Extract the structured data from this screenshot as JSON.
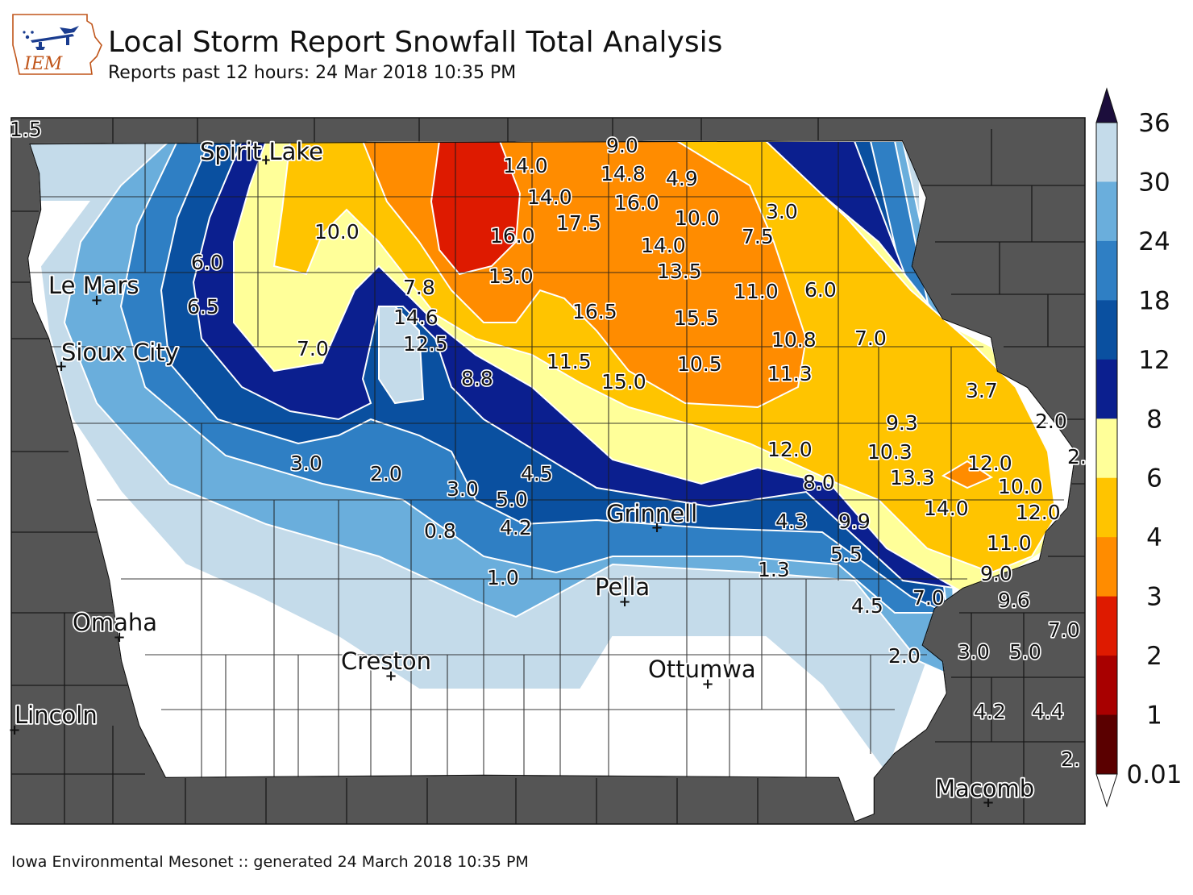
{
  "header": {
    "logo_text": "IEM",
    "title": "Local Storm Report Snowfall Total Analysis",
    "subtitle": "Reports past 12 hours: 24 Mar 2018 10:35 PM"
  },
  "footer": {
    "text": "Iowa Environmental Mesonet :: generated 24 March 2018 10:35 PM"
  },
  "colorbar": {
    "ticks": [
      "36",
      "30",
      "24",
      "18",
      "12",
      "8",
      "6",
      "4",
      "3",
      "2",
      "1",
      "0.01"
    ],
    "colors": [
      "#5a0000",
      "#a80000",
      "#de1a00",
      "#ff8c00",
      "#ffc400",
      "#ffff99",
      "#0b1f8f",
      "#0a50a0",
      "#2f7fc4",
      "#6aaedc",
      "#c4dbea"
    ],
    "top_color": "#1c0e3c",
    "bottom_color": "#ffffff"
  },
  "cities": [
    {
      "name": "Spirit Lake"
    },
    {
      "name": "Le Mars"
    },
    {
      "name": "Sioux City"
    },
    {
      "name": "Grinnell"
    },
    {
      "name": "Pella"
    },
    {
      "name": "Omaha"
    },
    {
      "name": "Creston"
    },
    {
      "name": "Ottumwa"
    },
    {
      "name": "Lincoln"
    },
    {
      "name": "Macomb"
    }
  ],
  "reports": [
    "1.5",
    "9.0",
    "14.0",
    "14.8",
    "4.9",
    "14.0",
    "16.0",
    "17.5",
    "10.0",
    "3.0",
    "16.0",
    "7.5",
    "14.0",
    "10.0",
    "13.0",
    "13.5",
    "6.0",
    "11.0",
    "6.0",
    "7.8",
    "6.5",
    "16.5",
    "15.5",
    "14.6",
    "12.5",
    "10.8",
    "7.0",
    "7.0",
    "11.5",
    "10.5",
    "8.8",
    "15.0",
    "11.3",
    "3.7",
    "9.3",
    "2.0",
    "12.0",
    "10.3",
    "2.",
    "3.0",
    "2.0",
    "4.5",
    "13.3",
    "12.0",
    "3.0",
    "8.0",
    "5.0",
    "10.0",
    "14.0",
    "12.0",
    "0.8",
    "4.2",
    "4.3",
    "9.9",
    "11.0",
    "5.5",
    "1.3",
    "9.0",
    "1.0",
    "7.0",
    "9.6",
    "4.5",
    "7.0",
    "3.0",
    "5.0",
    "2.0",
    "4.2",
    "4.4",
    "2."
  ]
}
